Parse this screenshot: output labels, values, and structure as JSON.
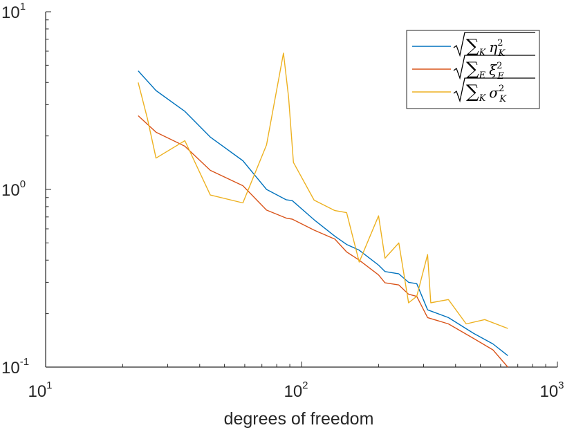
{
  "chart_data": {
    "type": "line",
    "title": "",
    "xlabel": "degrees of freedom",
    "ylabel": "",
    "xscale": "log",
    "yscale": "log",
    "xlim": [
      10,
      1000
    ],
    "ylim": [
      0.1,
      10
    ],
    "grid": false,
    "legend_position": "top-right",
    "x_ticks": [
      {
        "base": "10",
        "exp": "1"
      },
      {
        "base": "10",
        "exp": "2"
      },
      {
        "base": "10",
        "exp": "3"
      }
    ],
    "y_ticks": [
      {
        "base": "10",
        "exp": "-1"
      },
      {
        "base": "10",
        "exp": "0"
      },
      {
        "base": "10",
        "exp": "1"
      }
    ],
    "series": [
      {
        "name": "sqrt(sum_K eta_K^2)",
        "color": "#0072BD",
        "x": [
          23,
          27,
          35,
          44,
          59,
          73,
          87,
          92,
          112,
          135,
          150,
          168,
          200,
          212,
          240,
          262,
          282,
          311,
          375,
          470,
          560,
          640
        ],
        "y": [
          4.65,
          3.6,
          2.75,
          1.97,
          1.45,
          1.0,
          0.875,
          0.865,
          0.675,
          0.545,
          0.49,
          0.455,
          0.375,
          0.345,
          0.335,
          0.3,
          0.295,
          0.21,
          0.19,
          0.155,
          0.135,
          0.116
        ]
      },
      {
        "name": "sqrt(sum_E xi_E^2)",
        "color": "#D95319",
        "x": [
          23,
          27,
          35,
          44,
          59,
          73,
          87,
          92,
          112,
          135,
          150,
          168,
          200,
          212,
          240,
          262,
          282,
          311,
          375,
          470,
          560,
          640
        ],
        "y": [
          2.6,
          2.1,
          1.75,
          1.28,
          1.05,
          0.765,
          0.69,
          0.68,
          0.59,
          0.525,
          0.445,
          0.4,
          0.33,
          0.298,
          0.29,
          0.257,
          0.25,
          0.19,
          0.175,
          0.145,
          0.125,
          0.1
        ]
      },
      {
        "name": "sqrt(sum_K sigma_K^2)",
        "color": "#EDB120",
        "x": [
          23,
          25,
          27,
          35,
          44,
          59,
          73,
          85,
          89,
          93,
          112,
          135,
          150,
          168,
          200,
          212,
          240,
          262,
          282,
          311,
          320,
          375,
          440,
          520,
          640
        ],
        "y": [
          4.0,
          2.5,
          1.5,
          1.88,
          0.93,
          0.84,
          1.78,
          5.85,
          3.3,
          1.42,
          0.87,
          0.76,
          0.74,
          0.39,
          0.71,
          0.41,
          0.5,
          0.23,
          0.25,
          0.43,
          0.23,
          0.24,
          0.175,
          0.185,
          0.165
        ]
      }
    ]
  },
  "legend": {
    "entries": [
      {
        "color": "#0072BD",
        "sym": "η",
        "sub": "K",
        "sup": "2",
        "sum_sub": "K"
      },
      {
        "color": "#D95319",
        "sym": "ξ",
        "sub": "E",
        "sup": "2",
        "sum_sub": "E"
      },
      {
        "color": "#EDB120",
        "sym": "σ",
        "sub": "K",
        "sup": "2",
        "sum_sub": "K"
      }
    ]
  }
}
